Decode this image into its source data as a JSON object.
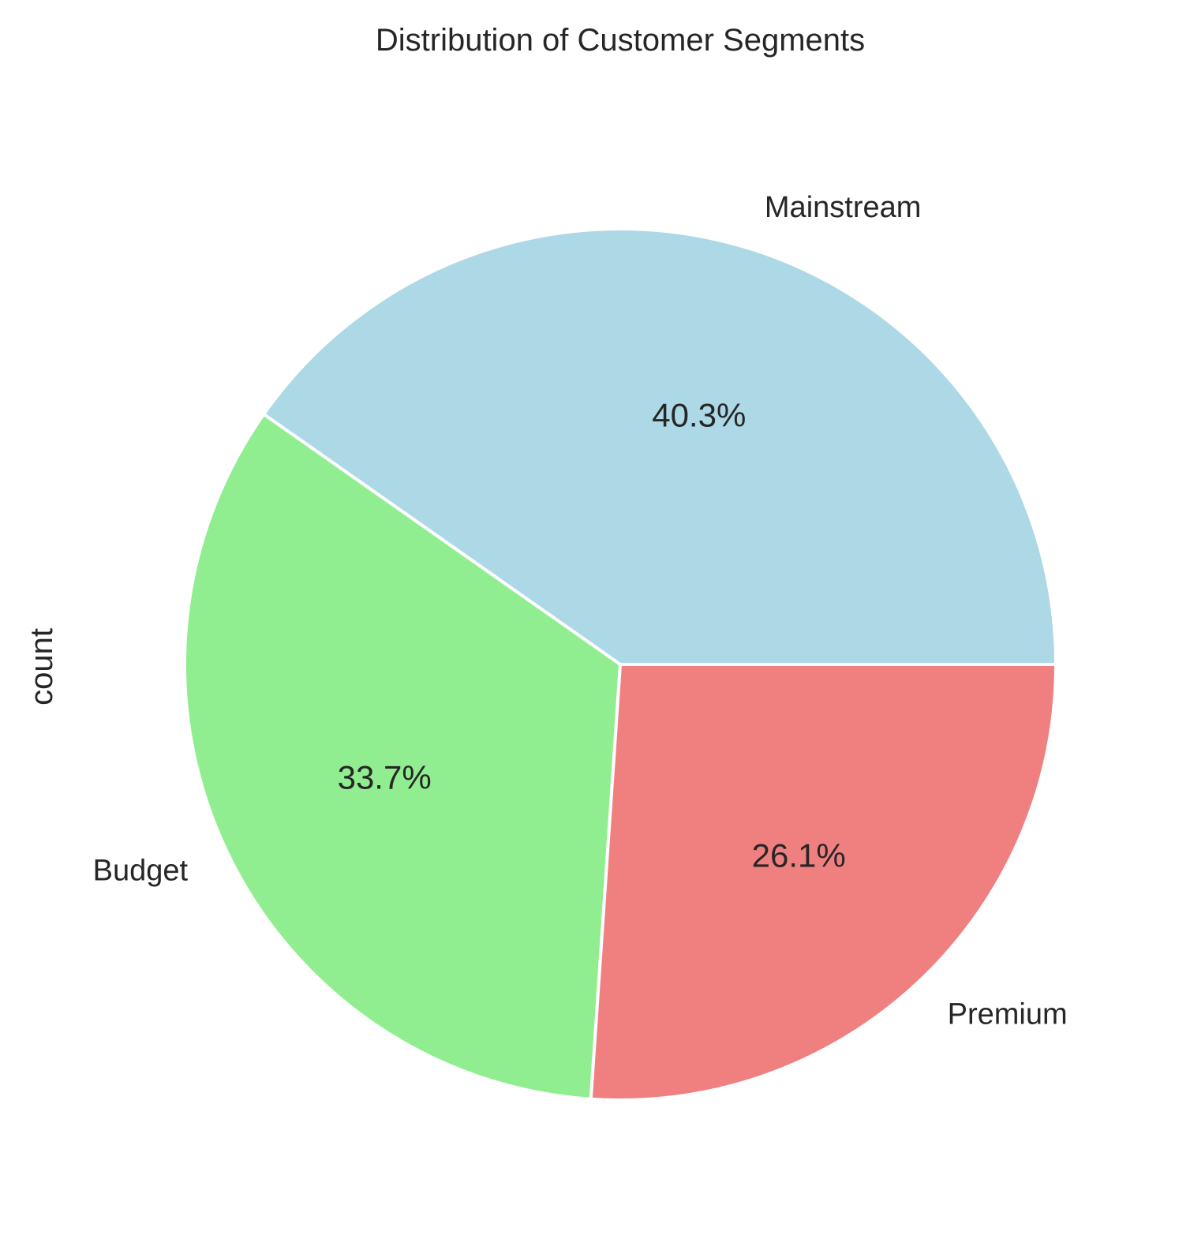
{
  "chart_data": {
    "type": "pie",
    "title": "Distribution of Customer Segments",
    "ylabel": "count",
    "categories": [
      "Mainstream",
      "Budget",
      "Premium"
    ],
    "values": [
      40.3,
      33.7,
      26.1
    ],
    "percent_labels": [
      "40.3%",
      "33.7%",
      "26.1%"
    ],
    "colors": [
      "#add8e6",
      "#90ee90",
      "#f08080"
    ],
    "start_angle_deg": 0,
    "direction": "counterclockwise"
  }
}
